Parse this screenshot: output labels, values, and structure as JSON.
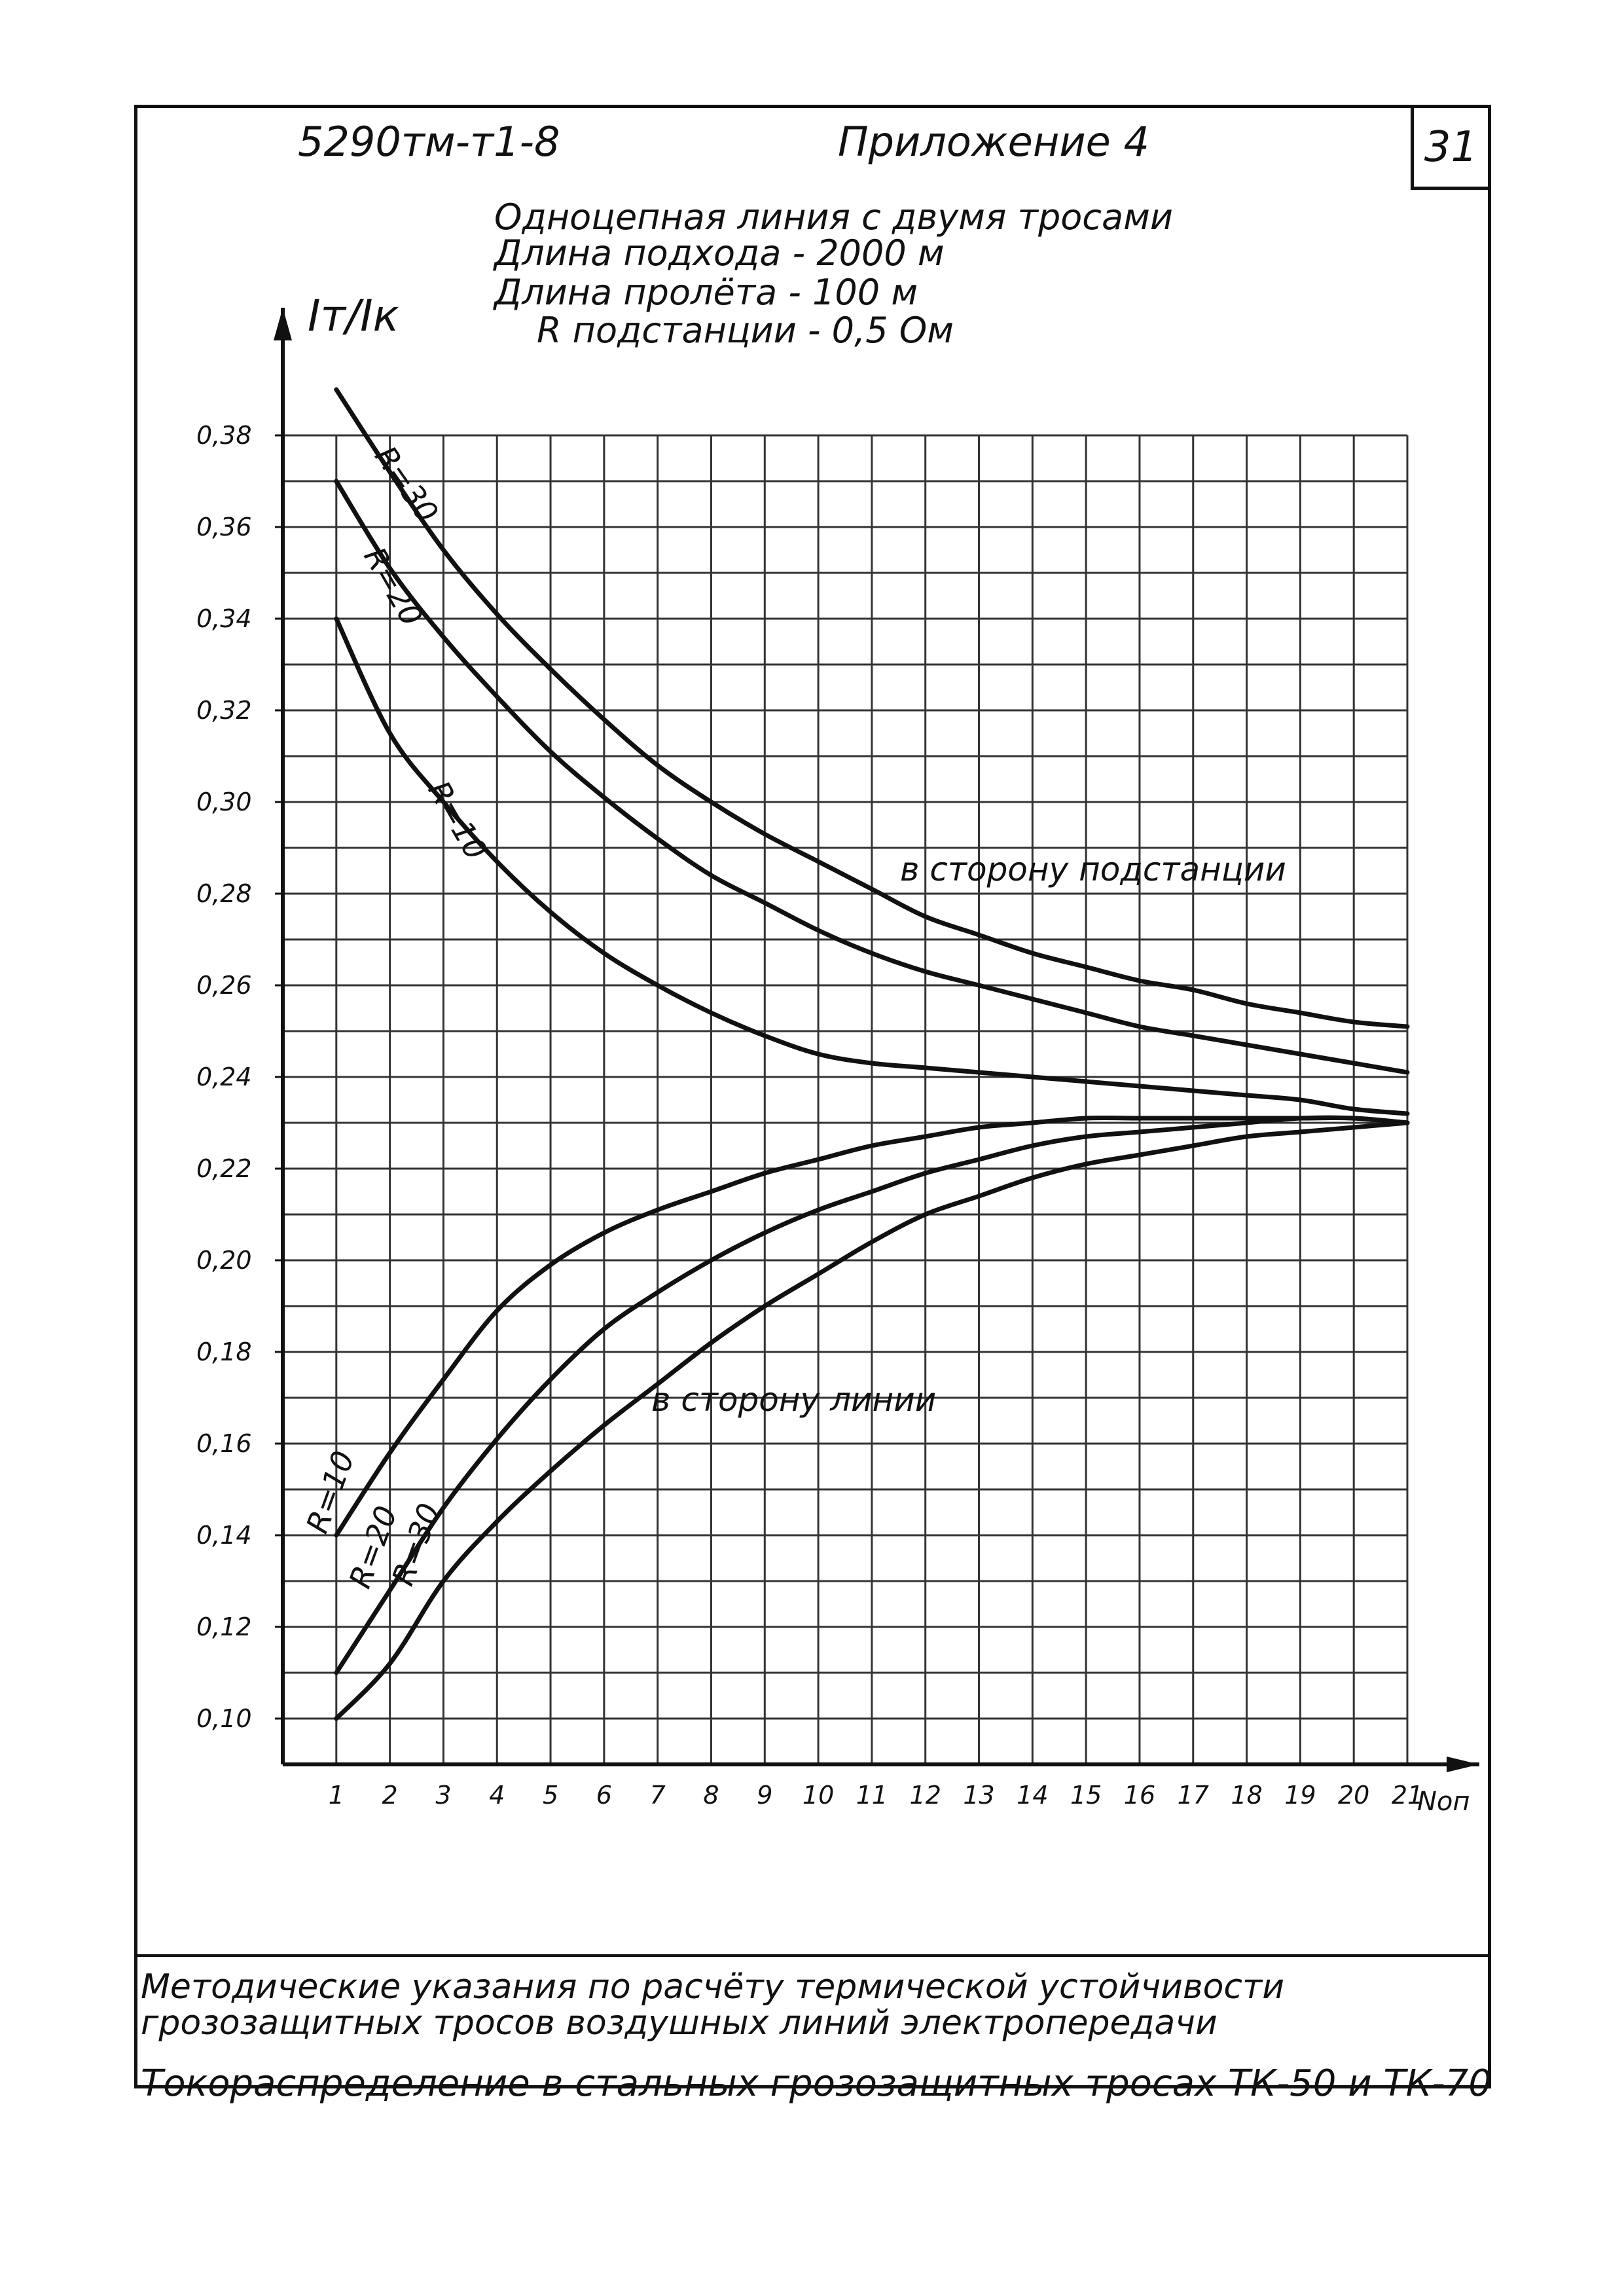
{
  "header": {
    "doc_number": "5290тм-т1-8",
    "appendix": "Приложение 4",
    "page_number": "31"
  },
  "subtitle_lines": [
    "Одноцепная линия с двумя тросами",
    "Длина подхода - 2000 м",
    "Длина пролёта - 100 м",
    "R подстанции - 0,5 Ом"
  ],
  "footer": {
    "line1": "Методические указания по расчёту термической устойчивости",
    "line2": "грозозащитных тросов воздушных линий электропередачи",
    "line3": "Токораспределение в стальных грозозащитных тросах ТК-50 и ТК-70"
  },
  "chart_data": {
    "type": "line",
    "ylabel": "Iт/Iк",
    "xlabel": "Nоп",
    "x": [
      1,
      2,
      3,
      4,
      5,
      6,
      7,
      8,
      9,
      10,
      11,
      12,
      13,
      14,
      15,
      16,
      17,
      18,
      19,
      20,
      21
    ],
    "xlim": [
      0,
      21
    ],
    "ylim": [
      0.1,
      0.38
    ],
    "yticks": [
      "0,10",
      "0,12",
      "0,14",
      "0,16",
      "0,18",
      "0,20",
      "0,22",
      "0,24",
      "0,26",
      "0,28",
      "0,30",
      "0,32",
      "0,34",
      "0,36",
      "0,38"
    ],
    "xticks": [
      "1",
      "2",
      "3",
      "4",
      "5",
      "6",
      "7",
      "8",
      "9",
      "10",
      "11",
      "12",
      "13",
      "14",
      "15",
      "16",
      "17",
      "18",
      "19",
      "20",
      "21"
    ],
    "grid": true,
    "group_labels": {
      "upper": "в сторону подстанции",
      "lower": "в сторону линии"
    },
    "series": [
      {
        "name": "R=30",
        "group": "upper",
        "values": [
          0.39,
          0.372,
          0.355,
          0.341,
          0.329,
          0.318,
          0.308,
          0.3,
          0.293,
          0.287,
          0.281,
          0.275,
          0.271,
          0.267,
          0.264,
          0.261,
          0.259,
          0.256,
          0.254,
          0.252,
          0.251
        ]
      },
      {
        "name": "R=20",
        "group": "upper",
        "values": [
          0.37,
          0.351,
          0.336,
          0.323,
          0.311,
          0.301,
          0.292,
          0.284,
          0.278,
          0.272,
          0.267,
          0.263,
          0.26,
          0.257,
          0.254,
          0.251,
          0.249,
          0.247,
          0.245,
          0.243,
          0.241
        ]
      },
      {
        "name": "R=10",
        "group": "upper",
        "values": [
          0.34,
          0.315,
          0.3,
          0.287,
          0.276,
          0.267,
          0.26,
          0.254,
          0.249,
          0.245,
          0.243,
          0.242,
          0.241,
          0.24,
          0.239,
          0.238,
          0.237,
          0.236,
          0.235,
          0.233,
          0.232
        ]
      },
      {
        "name": "R=10",
        "group": "lower",
        "values": [
          0.14,
          0.158,
          0.174,
          0.189,
          0.199,
          0.206,
          0.211,
          0.215,
          0.219,
          0.222,
          0.225,
          0.227,
          0.229,
          0.23,
          0.231,
          0.231,
          0.231,
          0.231,
          0.231,
          0.231,
          0.23
        ]
      },
      {
        "name": "R=20",
        "group": "lower",
        "values": [
          0.11,
          0.128,
          0.146,
          0.161,
          0.174,
          0.185,
          0.193,
          0.2,
          0.206,
          0.211,
          0.215,
          0.219,
          0.222,
          0.225,
          0.227,
          0.228,
          0.229,
          0.23,
          0.231,
          0.231,
          0.23
        ]
      },
      {
        "name": "R=30",
        "group": "lower",
        "values": [
          0.1,
          0.112,
          0.13,
          0.143,
          0.154,
          0.164,
          0.173,
          0.182,
          0.19,
          0.197,
          0.204,
          0.21,
          0.214,
          0.218,
          0.221,
          0.223,
          0.225,
          0.227,
          0.228,
          0.229,
          0.23
        ]
      }
    ]
  }
}
